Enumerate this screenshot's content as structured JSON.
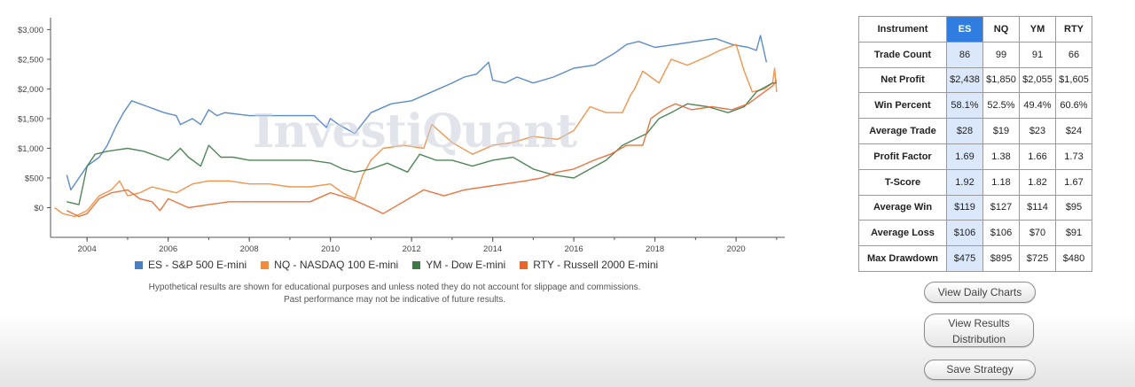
{
  "watermark": "InvestiQuant",
  "chart_data": {
    "type": "line",
    "xlim": [
      2003.1,
      2021.2
    ],
    "ylim": [
      -500,
      3200
    ],
    "x_ticks": [
      2004,
      2006,
      2008,
      2010,
      2012,
      2014,
      2016,
      2018,
      2020
    ],
    "y_ticks": [
      {
        "value": 3000,
        "label": "$3,000"
      },
      {
        "value": 2500,
        "label": "$2,500"
      },
      {
        "value": 2000,
        "label": "$2,000"
      },
      {
        "value": 1500,
        "label": "$1,500"
      },
      {
        "value": 1000,
        "label": "$1,000"
      },
      {
        "value": 500,
        "label": "$500"
      },
      {
        "value": 0,
        "label": "$0"
      }
    ],
    "grid": false,
    "legend_position": "bottom",
    "series": [
      {
        "name": "ES - S&P 500 E-mini",
        "color": "#4a7fc4",
        "points": [
          [
            2003.5,
            550
          ],
          [
            2003.6,
            300
          ],
          [
            2003.8,
            500
          ],
          [
            2004.0,
            700
          ],
          [
            2004.3,
            850
          ],
          [
            2004.5,
            1050
          ],
          [
            2004.7,
            1350
          ],
          [
            2004.9,
            1600
          ],
          [
            2005.1,
            1800
          ],
          [
            2005.5,
            1700
          ],
          [
            2005.9,
            1600
          ],
          [
            2006.2,
            1550
          ],
          [
            2006.3,
            1400
          ],
          [
            2006.6,
            1500
          ],
          [
            2006.8,
            1400
          ],
          [
            2007.0,
            1650
          ],
          [
            2007.2,
            1550
          ],
          [
            2007.4,
            1600
          ],
          [
            2008.0,
            1550
          ],
          [
            2009.0,
            1550
          ],
          [
            2009.6,
            1550
          ],
          [
            2009.9,
            1350
          ],
          [
            2010.0,
            1500
          ],
          [
            2010.2,
            1400
          ],
          [
            2010.6,
            1250
          ],
          [
            2011.0,
            1600
          ],
          [
            2011.5,
            1750
          ],
          [
            2012.0,
            1800
          ],
          [
            2012.5,
            1950
          ],
          [
            2013.0,
            2100
          ],
          [
            2013.3,
            2200
          ],
          [
            2013.6,
            2250
          ],
          [
            2013.9,
            2450
          ],
          [
            2014.0,
            2150
          ],
          [
            2014.3,
            2100
          ],
          [
            2014.6,
            2200
          ],
          [
            2015.0,
            2100
          ],
          [
            2015.5,
            2200
          ],
          [
            2016.0,
            2350
          ],
          [
            2016.5,
            2400
          ],
          [
            2017.0,
            2600
          ],
          [
            2017.3,
            2750
          ],
          [
            2017.6,
            2800
          ],
          [
            2018.0,
            2700
          ],
          [
            2018.5,
            2750
          ],
          [
            2019.0,
            2800
          ],
          [
            2019.5,
            2850
          ],
          [
            2019.9,
            2750
          ],
          [
            2020.3,
            2700
          ],
          [
            2020.5,
            2650
          ],
          [
            2020.6,
            2900
          ],
          [
            2020.75,
            2450
          ]
        ]
      },
      {
        "name": "NQ - NASDAQ 100 E-mini",
        "color": "#f08a3c",
        "points": [
          [
            2003.2,
            0
          ],
          [
            2003.4,
            -100
          ],
          [
            2003.7,
            -150
          ],
          [
            2004.0,
            -50
          ],
          [
            2004.3,
            200
          ],
          [
            2004.6,
            300
          ],
          [
            2004.8,
            450
          ],
          [
            2005.0,
            200
          ],
          [
            2005.3,
            250
          ],
          [
            2005.6,
            350
          ],
          [
            2005.9,
            300
          ],
          [
            2006.2,
            250
          ],
          [
            2006.6,
            400
          ],
          [
            2007.0,
            450
          ],
          [
            2007.5,
            450
          ],
          [
            2008.0,
            400
          ],
          [
            2008.5,
            400
          ],
          [
            2009.0,
            350
          ],
          [
            2009.5,
            350
          ],
          [
            2010.0,
            400
          ],
          [
            2010.3,
            250
          ],
          [
            2010.6,
            150
          ],
          [
            2010.8,
            550
          ],
          [
            2011.0,
            800
          ],
          [
            2011.3,
            1000
          ],
          [
            2011.8,
            1050
          ],
          [
            2012.3,
            1000
          ],
          [
            2012.5,
            1400
          ],
          [
            2013.0,
            1100
          ],
          [
            2013.5,
            900
          ],
          [
            2014.0,
            1050
          ],
          [
            2014.5,
            1100
          ],
          [
            2015.0,
            1200
          ],
          [
            2015.6,
            1150
          ],
          [
            2016.0,
            1300
          ],
          [
            2016.4,
            1700
          ],
          [
            2016.8,
            1600
          ],
          [
            2017.2,
            1600
          ],
          [
            2017.4,
            1900
          ],
          [
            2017.5,
            2000
          ],
          [
            2017.7,
            2300
          ],
          [
            2017.9,
            2200
          ],
          [
            2018.1,
            2100
          ],
          [
            2018.4,
            2500
          ],
          [
            2018.8,
            2400
          ],
          [
            2019.3,
            2550
          ],
          [
            2019.6,
            2650
          ],
          [
            2020.0,
            2750
          ],
          [
            2020.2,
            2300
          ],
          [
            2020.4,
            1950
          ],
          [
            2020.7,
            2000
          ],
          [
            2020.9,
            2100
          ],
          [
            2020.95,
            2350
          ],
          [
            2021.0,
            1950
          ]
        ]
      },
      {
        "name": "YM - Dow E-mini",
        "color": "#3d7a45",
        "points": [
          [
            2003.5,
            100
          ],
          [
            2003.8,
            50
          ],
          [
            2004.0,
            700
          ],
          [
            2004.2,
            900
          ],
          [
            2004.5,
            950
          ],
          [
            2005.0,
            1000
          ],
          [
            2005.4,
            950
          ],
          [
            2005.8,
            850
          ],
          [
            2006.0,
            800
          ],
          [
            2006.3,
            1000
          ],
          [
            2006.5,
            850
          ],
          [
            2006.8,
            700
          ],
          [
            2007.0,
            1050
          ],
          [
            2007.3,
            850
          ],
          [
            2007.6,
            850
          ],
          [
            2008.0,
            800
          ],
          [
            2008.5,
            800
          ],
          [
            2009.0,
            800
          ],
          [
            2009.5,
            800
          ],
          [
            2010.0,
            750
          ],
          [
            2010.3,
            650
          ],
          [
            2010.6,
            600
          ],
          [
            2011.0,
            650
          ],
          [
            2011.4,
            750
          ],
          [
            2011.9,
            600
          ],
          [
            2012.2,
            900
          ],
          [
            2012.6,
            800
          ],
          [
            2013.0,
            800
          ],
          [
            2013.5,
            700
          ],
          [
            2014.0,
            800
          ],
          [
            2014.5,
            850
          ],
          [
            2015.0,
            650
          ],
          [
            2015.5,
            550
          ],
          [
            2016.0,
            500
          ],
          [
            2016.4,
            650
          ],
          [
            2016.8,
            800
          ],
          [
            2017.2,
            1050
          ],
          [
            2017.5,
            1150
          ],
          [
            2017.8,
            1250
          ],
          [
            2018.1,
            1500
          ],
          [
            2018.4,
            1600
          ],
          [
            2018.8,
            1750
          ],
          [
            2019.3,
            1700
          ],
          [
            2019.8,
            1600
          ],
          [
            2020.2,
            1700
          ],
          [
            2020.5,
            1950
          ],
          [
            2020.9,
            2100
          ],
          [
            2021.0,
            2100
          ]
        ]
      },
      {
        "name": "RTY - Russell 2000 E-mini",
        "color": "#e8662c",
        "points": [
          [
            2003.5,
            -50
          ],
          [
            2003.8,
            -150
          ],
          [
            2004.0,
            -100
          ],
          [
            2004.3,
            150
          ],
          [
            2004.6,
            250
          ],
          [
            2005.0,
            300
          ],
          [
            2005.3,
            150
          ],
          [
            2005.6,
            100
          ],
          [
            2005.8,
            -50
          ],
          [
            2006.0,
            150
          ],
          [
            2006.5,
            0
          ],
          [
            2007.0,
            50
          ],
          [
            2007.5,
            100
          ],
          [
            2008.0,
            100
          ],
          [
            2009.0,
            100
          ],
          [
            2009.5,
            100
          ],
          [
            2010.0,
            250
          ],
          [
            2010.5,
            150
          ],
          [
            2011.0,
            0
          ],
          [
            2011.3,
            -100
          ],
          [
            2011.8,
            100
          ],
          [
            2012.3,
            300
          ],
          [
            2012.8,
            200
          ],
          [
            2013.3,
            300
          ],
          [
            2013.8,
            350
          ],
          [
            2014.3,
            400
          ],
          [
            2014.8,
            450
          ],
          [
            2015.2,
            500
          ],
          [
            2015.6,
            600
          ],
          [
            2016.0,
            650
          ],
          [
            2016.5,
            800
          ],
          [
            2016.9,
            900
          ],
          [
            2017.3,
            1050
          ],
          [
            2017.7,
            1050
          ],
          [
            2017.9,
            1500
          ],
          [
            2018.2,
            1650
          ],
          [
            2018.5,
            1750
          ],
          [
            2018.9,
            1650
          ],
          [
            2019.4,
            1700
          ],
          [
            2019.9,
            1650
          ],
          [
            2020.3,
            1750
          ],
          [
            2020.7,
            1950
          ],
          [
            2020.9,
            2050
          ],
          [
            2021.0,
            2150
          ]
        ]
      }
    ]
  },
  "disclaimer": {
    "line1": "Hypothetical results are shown for educational purposes and unless noted they do not account for slippage and commissions.",
    "line2": "Past performance may not be indicative of future results."
  },
  "table": {
    "header_label": "Instrument",
    "columns": [
      "ES",
      "NQ",
      "YM",
      "RTY"
    ],
    "rows": [
      {
        "label": "Trade Count",
        "values": [
          "86",
          "99",
          "91",
          "66"
        ]
      },
      {
        "label": "Net Profit",
        "values": [
          "$2,438",
          "$1,850",
          "$2,055",
          "$1,605"
        ]
      },
      {
        "label": "Win Percent",
        "values": [
          "58.1%",
          "52.5%",
          "49.4%",
          "60.6%"
        ]
      },
      {
        "label": "Average Trade",
        "values": [
          "$28",
          "$19",
          "$23",
          "$24"
        ]
      },
      {
        "label": "Profit Factor",
        "values": [
          "1.69",
          "1.38",
          "1.66",
          "1.73"
        ]
      },
      {
        "label": "T-Score",
        "values": [
          "1.92",
          "1.18",
          "1.82",
          "1.67"
        ]
      },
      {
        "label": "Average Win",
        "values": [
          "$119",
          "$127",
          "$114",
          "$95"
        ]
      },
      {
        "label": "Average Loss",
        "values": [
          "$106",
          "$106",
          "$70",
          "$91"
        ]
      },
      {
        "label": "Max Drawdown",
        "values": [
          "$475",
          "$895",
          "$725",
          "$480"
        ]
      }
    ]
  },
  "buttons": {
    "daily_charts": "View Daily Charts",
    "results_line1": "View Results",
    "results_line2": "Distribution",
    "save": "Save Strategy"
  }
}
